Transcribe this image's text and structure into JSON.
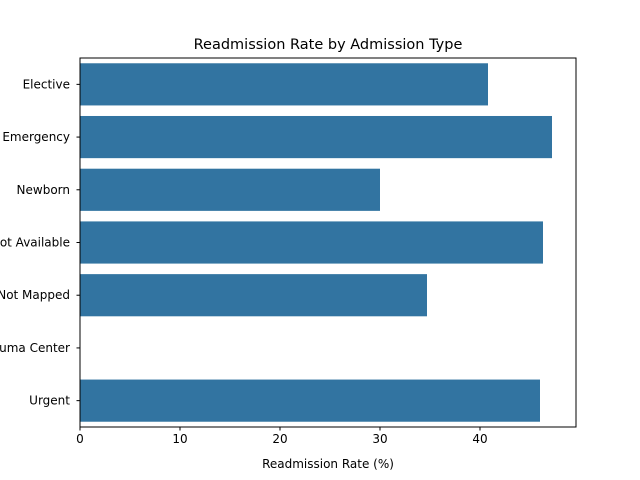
{
  "chart_data": {
    "type": "bar",
    "orientation": "horizontal",
    "title": "Readmission Rate by Admission Type",
    "xlabel": "Readmission Rate (%)",
    "ylabel": "",
    "categories": [
      "Elective",
      "Emergency",
      "Newborn",
      "Not Available",
      "Not Mapped",
      "Trauma Center",
      "Urgent"
    ],
    "values": [
      40.8,
      47.2,
      30.0,
      46.3,
      34.7,
      0,
      46.0
    ],
    "xlim": [
      0,
      49.6
    ],
    "xticks": [
      0,
      10,
      20,
      30,
      40
    ],
    "grid": false,
    "legend": "none",
    "bar_color": "#3274a1"
  }
}
